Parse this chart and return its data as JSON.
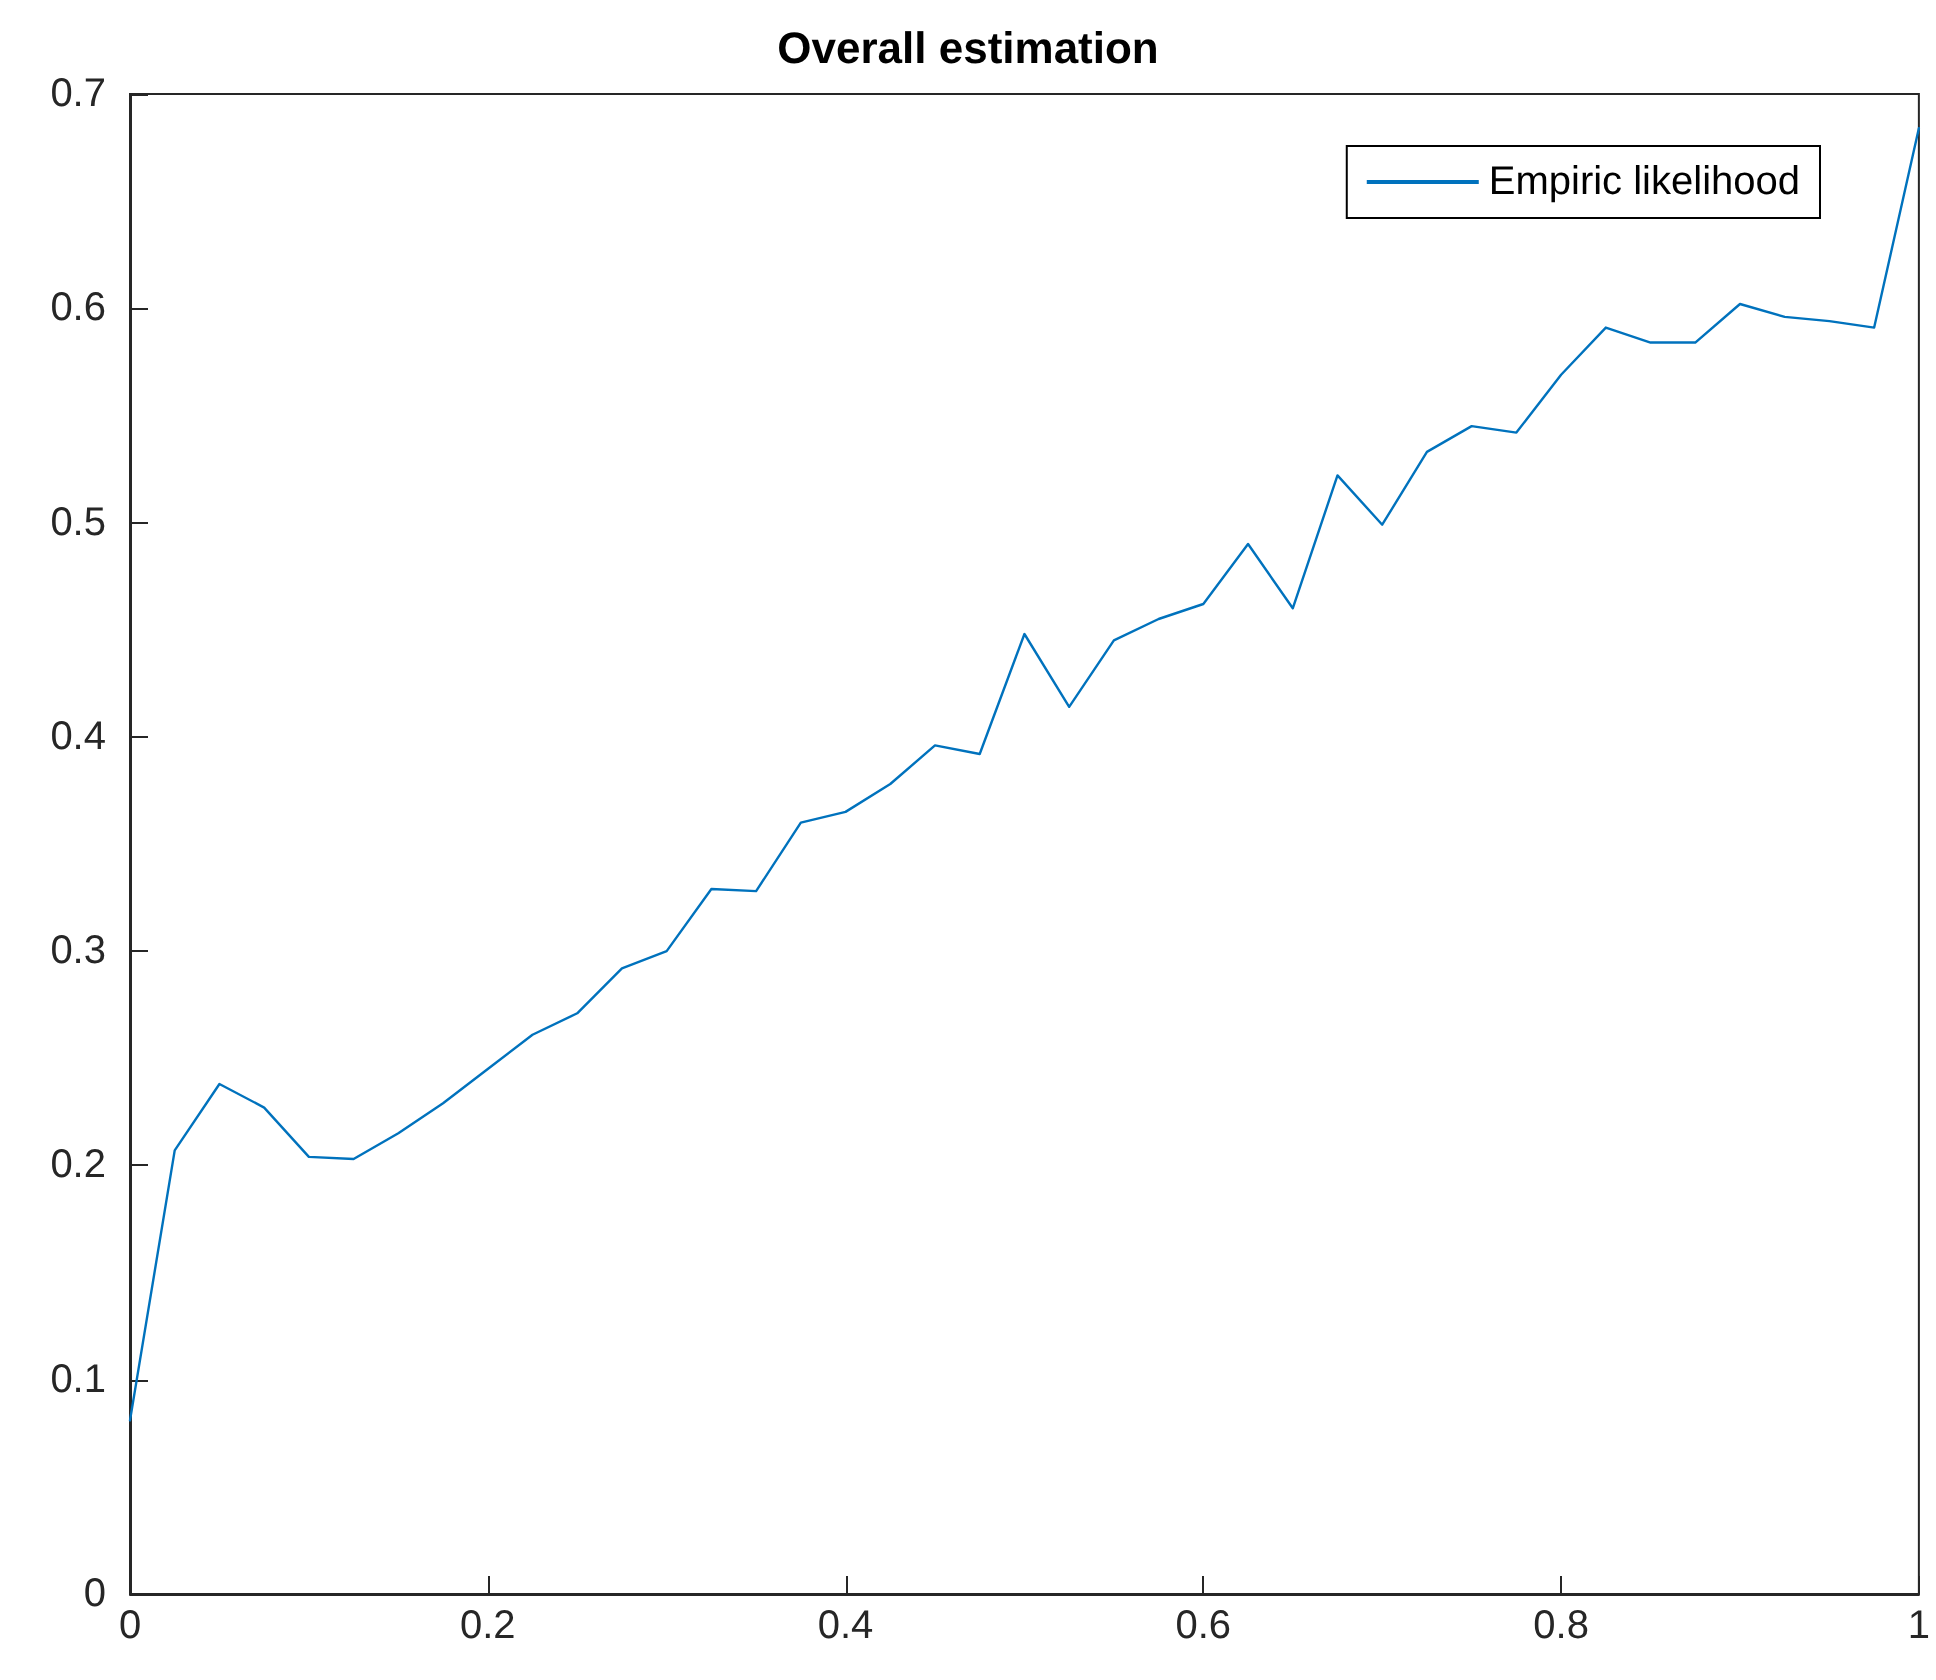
{
  "chart_data": {
    "type": "line",
    "title": "Overall estimation",
    "x": [
      0,
      0.025,
      0.05,
      0.075,
      0.1,
      0.125,
      0.15,
      0.175,
      0.2,
      0.225,
      0.25,
      0.275,
      0.3,
      0.325,
      0.35,
      0.375,
      0.4,
      0.425,
      0.45,
      0.475,
      0.5,
      0.525,
      0.55,
      0.575,
      0.6,
      0.625,
      0.65,
      0.675,
      0.7,
      0.725,
      0.75,
      0.775,
      0.8,
      0.825,
      0.85,
      0.875,
      0.9,
      0.925,
      0.95,
      0.975,
      1
    ],
    "series": [
      {
        "name": "Empiric likelihood",
        "color": "#0072bd",
        "values": [
          0.081,
          0.207,
          0.238,
          0.227,
          0.204,
          0.203,
          0.215,
          0.229,
          0.245,
          0.261,
          0.271,
          0.292,
          0.3,
          0.329,
          0.328,
          0.36,
          0.365,
          0.378,
          0.396,
          0.392,
          0.448,
          0.414,
          0.445,
          0.455,
          0.462,
          0.49,
          0.46,
          0.522,
          0.499,
          0.533,
          0.545,
          0.542,
          0.569,
          0.591,
          0.584,
          0.584,
          0.602,
          0.596,
          0.594,
          0.591,
          0.684
        ]
      }
    ],
    "xlim": [
      0,
      1
    ],
    "xticks": [
      0,
      0.2,
      0.4,
      0.6,
      0.8,
      1
    ],
    "ylim": [
      0,
      0.7
    ],
    "yticks": [
      0,
      0.1,
      0.2,
      0.3,
      0.4,
      0.5,
      0.6,
      0.7
    ],
    "grid": false,
    "legend": "top right",
    "marker": "none",
    "line_style": "solid"
  }
}
